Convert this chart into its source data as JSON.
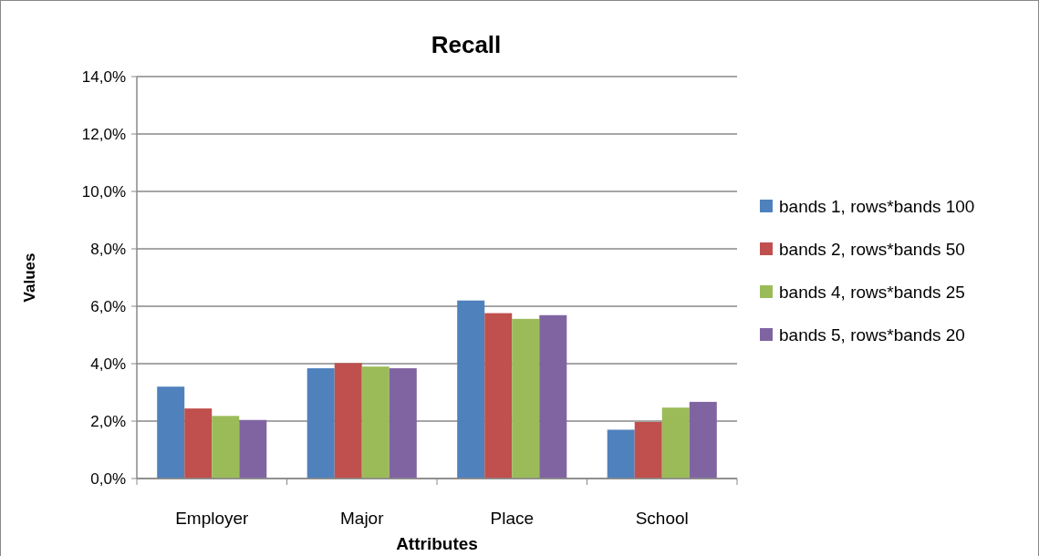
{
  "chart_data": {
    "type": "bar",
    "title": "Recall",
    "xlabel": "Attributes",
    "ylabel": "Values",
    "categories": [
      "Employer",
      "Major",
      "Place",
      "School"
    ],
    "series": [
      {
        "name": "bands 1, rows*bands 100",
        "color": "#4f81bd",
        "values": [
          3.2,
          3.84,
          6.2,
          1.7
        ]
      },
      {
        "name": "bands 2, rows*bands 50",
        "color": "#c0504d",
        "values": [
          2.44,
          4.02,
          5.76,
          1.97
        ]
      },
      {
        "name": "bands 4, rows*bands 25",
        "color": "#9bbb59",
        "values": [
          2.18,
          3.9,
          5.56,
          2.47
        ]
      },
      {
        "name": "bands 5, rows*bands 20",
        "color": "#8064a2",
        "values": [
          2.04,
          3.84,
          5.69,
          2.67
        ]
      }
    ],
    "ylim": [
      0,
      14
    ],
    "yticks": [
      {
        "value": 0,
        "label": "0,0%"
      },
      {
        "value": 2,
        "label": "2,0%"
      },
      {
        "value": 4,
        "label": "4,0%"
      },
      {
        "value": 6,
        "label": "6,0%"
      },
      {
        "value": 8,
        "label": "8,0%"
      },
      {
        "value": 10,
        "label": "10,0%"
      },
      {
        "value": 12,
        "label": "12,0%"
      },
      {
        "value": 14,
        "label": "14,0%"
      }
    ],
    "grid": "y",
    "legend": "right"
  }
}
